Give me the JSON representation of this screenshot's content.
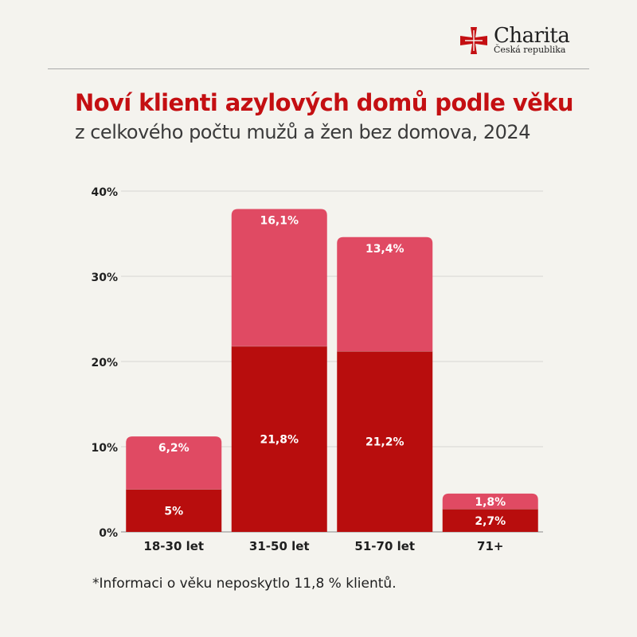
{
  "brand": {
    "name": "Charita",
    "subtitle": "Česká republika",
    "color": "#c40f12"
  },
  "header": {
    "title": "Noví klienti azylových domů podle věku",
    "subtitle": "z celkového počtu mužů a žen bez domova, 2024"
  },
  "footnote": "*Informaci o věku neposkytlo 11,8 % klientů.",
  "chart_data": {
    "type": "bar",
    "stacked": true,
    "title": "Noví klienti azylových domů podle věku",
    "subtitle": "z celkového počtu mužů a žen bez domova, 2024",
    "categories": [
      "18-30 let",
      "31-50 let",
      "51-70 let",
      "71+"
    ],
    "series": [
      {
        "values": [
          5,
          21.8,
          21.2,
          2.7
        ],
        "labels": [
          "5%",
          "21,8%",
          "21,2%",
          "2,7%"
        ],
        "color": "#b80d0d"
      },
      {
        "values": [
          6.2,
          16.1,
          13.4,
          1.8
        ],
        "labels": [
          "6,2%",
          "16,1%",
          "13,4%",
          "1,8%"
        ],
        "color": "#e04a63"
      }
    ],
    "ylim": [
      0,
      40
    ],
    "yticks": [
      0,
      10,
      20,
      30,
      40
    ],
    "ytick_labels": [
      "0%",
      "10%",
      "20%",
      "30%",
      "40%"
    ],
    "grid": true,
    "legend": "none"
  }
}
